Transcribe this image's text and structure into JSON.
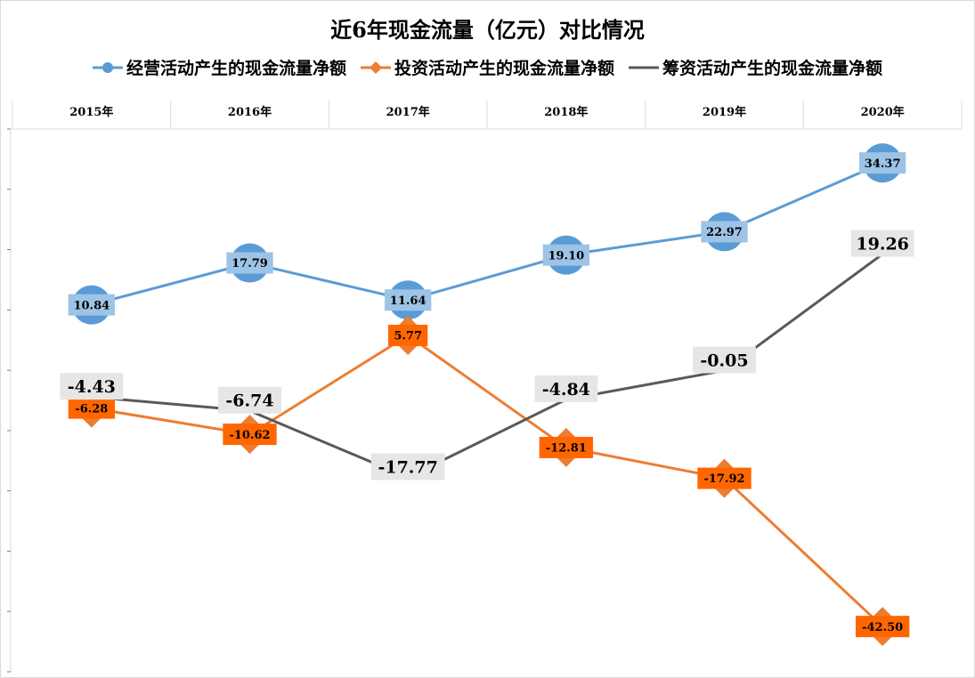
{
  "chart_data": {
    "type": "line",
    "title": "近6年现金流量（亿元）对比情况",
    "categories": [
      "2015年",
      "2016年",
      "2017年",
      "2018年",
      "2019年",
      "2020年"
    ],
    "ylim": [
      -50,
      40
    ],
    "grid": false,
    "legend": "top",
    "series": [
      {
        "name": "经营活动产生的现金流量净额",
        "values": [
          10.84,
          17.79,
          11.64,
          19.1,
          22.97,
          34.37
        ],
        "labels": [
          "10.84",
          "17.79",
          "11.64",
          "19.10",
          "22.97",
          "34.37"
        ],
        "color": "#5b9bd5",
        "marker": "circle",
        "label_fill": "#9dc3e6",
        "label_color": "#000000"
      },
      {
        "name": "投资活动产生的现金流量净额",
        "values": [
          -6.28,
          -10.62,
          5.77,
          -12.81,
          -17.92,
          -42.5
        ],
        "labels": [
          "-6.28",
          "-10.62",
          "5.77",
          "-12.81",
          "-17.92",
          "-42.50"
        ],
        "color": "#ed7d31",
        "marker": "diamond",
        "label_fill": "#ff6600",
        "label_color": "#000000"
      },
      {
        "name": "筹资活动产生的现金流量净额",
        "values": [
          -4.43,
          -6.74,
          -17.77,
          -4.84,
          -0.05,
          19.26
        ],
        "labels": [
          "-4.43",
          "-6.74",
          "-17.77",
          "-4.84",
          "-0.05",
          "19.26"
        ],
        "color": "#595959",
        "marker": "none",
        "label_fill": "#e7e6e6",
        "label_color": "#000000"
      }
    ]
  }
}
